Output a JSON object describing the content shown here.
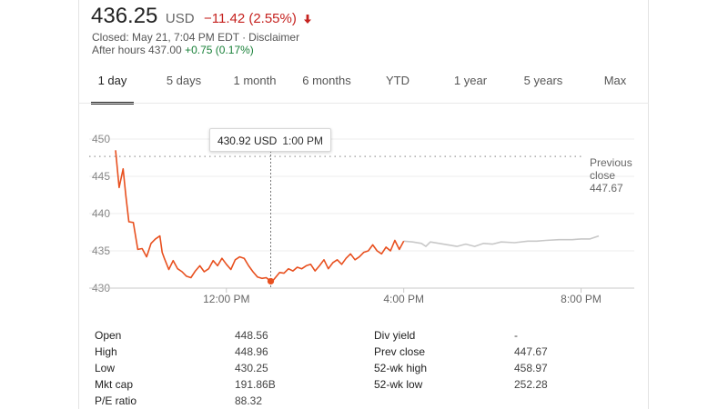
{
  "quote": {
    "price": "436.25",
    "currency": "USD",
    "change": "−11.42 (2.55%)",
    "change_color": "#c5221f",
    "closed": "Closed: May 21, 7:04 PM EDT",
    "separator": "·",
    "disclaimer": "Disclaimer",
    "after_hours_label": "After hours 437.00",
    "after_hours_change": "+0.75 (0.17%)",
    "after_hours_color": "#188038"
  },
  "tabs": [
    {
      "label": "1 day",
      "active": true
    },
    {
      "label": "5 days",
      "active": false
    },
    {
      "label": "1 month",
      "active": false
    },
    {
      "label": "6 months",
      "active": false
    },
    {
      "label": "YTD",
      "active": false
    },
    {
      "label": "1 year",
      "active": false
    },
    {
      "label": "5 years",
      "active": false
    },
    {
      "label": "Max",
      "active": false
    }
  ],
  "tooltip": {
    "price": "430.92 USD",
    "time": "1:00 PM"
  },
  "previous_close": {
    "line1": "Previous",
    "line2": "close",
    "value": "447.67"
  },
  "chart_data": {
    "type": "line",
    "x_unit": "hours",
    "x_ticks": [
      {
        "value": 12,
        "label": "12:00 PM"
      },
      {
        "value": 16,
        "label": "4:00 PM"
      },
      {
        "value": 20,
        "label": "8:00 PM"
      }
    ],
    "y_ticks": [
      430,
      435,
      440,
      445,
      450
    ],
    "ylim": [
      430,
      450
    ],
    "xlim": [
      9.5,
      21.2
    ],
    "reference_line": 447.67,
    "highlight_point": {
      "x": 13.0,
      "y": 430.92
    },
    "grid": true,
    "series": [
      {
        "color": "#e8501f",
        "x": [
          9.5,
          9.58,
          9.67,
          9.73,
          9.8,
          9.9,
          10.0,
          10.1,
          10.2,
          10.3,
          10.4,
          10.5,
          10.55,
          10.6,
          10.7,
          10.8,
          10.9,
          11.0,
          11.1,
          11.2,
          11.3,
          11.4,
          11.5,
          11.6,
          11.7,
          11.8,
          11.9,
          12.0,
          12.1,
          12.2,
          12.3,
          12.4,
          12.5,
          12.6,
          12.7,
          12.8,
          12.9,
          13.0,
          13.05,
          13.2,
          13.3,
          13.4,
          13.5,
          13.6,
          13.7,
          13.8,
          13.9,
          14.0,
          14.1,
          14.2,
          14.3,
          14.4,
          14.5,
          14.6,
          14.7,
          14.8,
          14.9,
          15.0,
          15.1,
          15.2,
          15.3,
          15.4,
          15.5,
          15.6,
          15.7,
          15.8,
          15.9,
          16.0
        ],
        "y": [
          448.5,
          443.5,
          446.0,
          442.5,
          438.9,
          438.8,
          435.2,
          435.3,
          434.2,
          436.0,
          436.6,
          437.0,
          434.8,
          434.0,
          432.5,
          433.7,
          432.6,
          432.2,
          431.6,
          431.4,
          432.3,
          433.0,
          432.2,
          432.6,
          433.7,
          433.0,
          434.0,
          433.2,
          432.5,
          433.8,
          434.2,
          434.0,
          433.0,
          432.2,
          431.5,
          431.3,
          431.4,
          430.92,
          431.0,
          432.1,
          432.0,
          432.6,
          432.3,
          432.8,
          432.6,
          433.0,
          433.2,
          432.3,
          433.0,
          433.8,
          432.6,
          433.4,
          433.8,
          433.2,
          434.0,
          434.6,
          433.8,
          434.2,
          434.8,
          435.0,
          435.8,
          435.0,
          434.6,
          435.5,
          435.0,
          436.4,
          435.2,
          436.3
        ]
      },
      {
        "color": "#c8c8c8",
        "x": [
          16.0,
          16.2,
          16.4,
          16.5,
          16.6,
          16.8,
          17.0,
          17.2,
          17.4,
          17.6,
          17.8,
          18.0,
          18.2,
          18.5,
          18.8,
          19.0,
          19.2,
          19.5,
          19.8,
          20.0,
          20.2,
          20.4
        ],
        "y": [
          436.3,
          436.2,
          436.0,
          435.6,
          436.2,
          436.0,
          435.8,
          435.6,
          435.9,
          435.6,
          436.0,
          435.9,
          436.2,
          436.1,
          436.3,
          436.3,
          436.4,
          436.5,
          436.5,
          436.6,
          436.6,
          437.0
        ]
      }
    ]
  },
  "stats_left": [
    {
      "label": "Open",
      "value": "448.56"
    },
    {
      "label": "High",
      "value": "448.96"
    },
    {
      "label": "Low",
      "value": "430.25"
    },
    {
      "label": "Mkt cap",
      "value": "191.86B"
    },
    {
      "label": "P/E ratio",
      "value": "88.32"
    }
  ],
  "stats_right": [
    {
      "label": "Div yield",
      "value": "-"
    },
    {
      "label": "Prev close",
      "value": "447.67"
    },
    {
      "label": "52-wk high",
      "value": "458.97"
    },
    {
      "label": "52-wk low",
      "value": "252.28"
    }
  ]
}
